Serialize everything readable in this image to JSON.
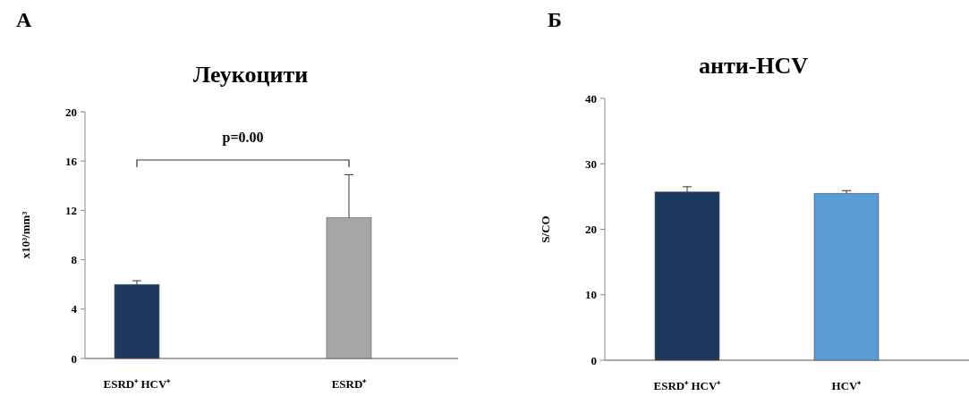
{
  "chart_data": [
    {
      "type": "bar",
      "title": "Леукоцити",
      "ylabel": "x10³/mm³",
      "categories": [
        "ESRD⁺ HCV⁺",
        "ESRD⁺"
      ],
      "values": [
        6.0,
        11.4
      ],
      "colors": [
        "#1f3a60",
        "#a6a6a6"
      ],
      "errors": [
        [
          6.0,
          6.3
        ],
        [
          11.4,
          14.9
        ]
      ],
      "ylim": [
        0,
        20
      ],
      "yticks": [
        0,
        4,
        8,
        12,
        16,
        20
      ],
      "grid": false,
      "annotations": [
        "А",
        "p=0.00"
      ]
    },
    {
      "type": "bar",
      "title": "анти-HCV",
      "ylabel": "S/CO",
      "categories": [
        "ESRD⁺ HCV⁺",
        "HCV⁺"
      ],
      "values": [
        25.7,
        25.5
      ],
      "colors": [
        "#1f3a60",
        "#5b9bd5"
      ],
      "errors": [
        [
          25.7,
          26.5
        ],
        [
          25.5,
          25.9
        ]
      ],
      "ylim": [
        0,
        40
      ],
      "yticks": [
        0,
        10,
        20,
        30,
        40
      ],
      "grid": false,
      "annotations": [
        "Б"
      ]
    }
  ]
}
